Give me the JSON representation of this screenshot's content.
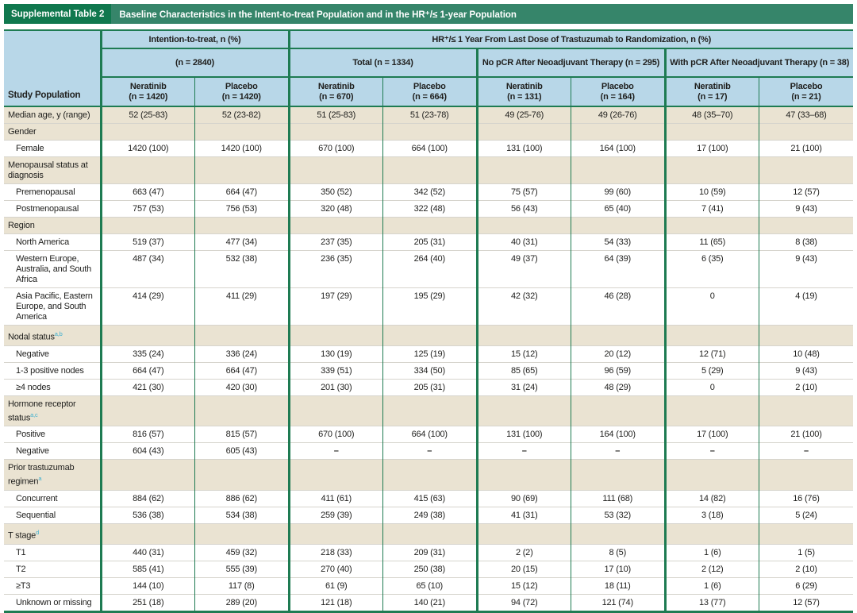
{
  "title_bar": {
    "label": "Supplemental Table 2",
    "title": "Baseline Characteristics in the Intent-to-treat Population and in the HR⁺/≤ 1-year Population"
  },
  "header": {
    "study_population": "Study Population",
    "group_itt": "Intention-to-treat, n (%)",
    "group_hr": "HR⁺/≤ 1 Year From Last Dose of Trastuzumab to Randomization, n (%)",
    "sub_itt": "(n = 2840)",
    "sub_total": "Total (n = 1334)",
    "sub_nopcr": "No pCR After Neoadjuvant Therapy (n = 295)",
    "sub_pcr": "With pCR After Neoadjuvant Therapy (n = 38)",
    "columns": [
      {
        "drug": "Neratinib",
        "n": "(n = 1420)"
      },
      {
        "drug": "Placebo",
        "n": "(n = 1420)"
      },
      {
        "drug": "Neratinib",
        "n": "(n = 670)"
      },
      {
        "drug": "Placebo",
        "n": "(n = 664)"
      },
      {
        "drug": "Neratinib",
        "n": "(n = 131)"
      },
      {
        "drug": "Placebo",
        "n": "(n = 164)"
      },
      {
        "drug": "Neratinib",
        "n": "(n = 17)"
      },
      {
        "drug": "Placebo",
        "n": "(n = 21)"
      }
    ]
  },
  "rows": [
    {
      "label": "Median age, y (range)",
      "sup": "",
      "indent": false,
      "values": [
        "52 (25-83)",
        "52 (23-82)",
        "51 (25-83)",
        "51 (23-78)",
        "49 (25-76)",
        "49 (26-76)",
        "48 (35–70)",
        "47 (33–68)"
      ]
    },
    {
      "label": "Gender",
      "sup": "",
      "indent": false,
      "values": []
    },
    {
      "label": "Female",
      "sup": "",
      "indent": true,
      "values": [
        "1420 (100)",
        "1420 (100)",
        "670 (100)",
        "664 (100)",
        "131 (100)",
        "164 (100)",
        "17 (100)",
        "21 (100)"
      ]
    },
    {
      "label": "Menopausal status at diagnosis",
      "sup": "",
      "indent": false,
      "values": []
    },
    {
      "label": "Premenopausal",
      "sup": "",
      "indent": true,
      "values": [
        "663 (47)",
        "664 (47)",
        "350 (52)",
        "342 (52)",
        "75 (57)",
        "99 (60)",
        "10 (59)",
        "12 (57)"
      ]
    },
    {
      "label": "Postmenopausal",
      "sup": "",
      "indent": true,
      "values": [
        "757 (53)",
        "756 (53)",
        "320 (48)",
        "322 (48)",
        "56 (43)",
        "65 (40)",
        "7 (41)",
        "9 (43)"
      ]
    },
    {
      "label": "Region",
      "sup": "",
      "indent": false,
      "values": []
    },
    {
      "label": "North America",
      "sup": "",
      "indent": true,
      "values": [
        "519 (37)",
        "477 (34)",
        "237 (35)",
        "205 (31)",
        "40 (31)",
        "54 (33)",
        "11 (65)",
        "8 (38)"
      ]
    },
    {
      "label": "Western Europe, Australia, and South Africa",
      "sup": "",
      "indent": true,
      "values": [
        "487 (34)",
        "532 (38)",
        "236 (35)",
        "264 (40)",
        "49 (37)",
        "64 (39)",
        "6 (35)",
        "9 (43)"
      ]
    },
    {
      "label": "Asia Pacific, Eastern Europe, and South America",
      "sup": "",
      "indent": true,
      "values": [
        "414 (29)",
        "411 (29)",
        "197 (29)",
        "195 (29)",
        "42 (32)",
        "46 (28)",
        "0",
        "4 (19)"
      ]
    },
    {
      "label": "Nodal status",
      "sup": "a,b",
      "indent": false,
      "values": []
    },
    {
      "label": "Negative",
      "sup": "",
      "indent": true,
      "values": [
        "335 (24)",
        "336 (24)",
        "130 (19)",
        "125 (19)",
        "15 (12)",
        "20 (12)",
        "12 (71)",
        "10 (48)"
      ]
    },
    {
      "label": "1-3 positive nodes",
      "sup": "",
      "indent": true,
      "values": [
        "664 (47)",
        "664 (47)",
        "339 (51)",
        "334 (50)",
        "85 (65)",
        "96 (59)",
        "5 (29)",
        "9 (43)"
      ]
    },
    {
      "label": "≥4 nodes",
      "sup": "",
      "indent": true,
      "values": [
        "421 (30)",
        "420 (30)",
        "201 (30)",
        "205 (31)",
        "31 (24)",
        "48 (29)",
        "0",
        "2 (10)"
      ]
    },
    {
      "label": "Hormone receptor status",
      "sup": "a,c",
      "indent": false,
      "values": []
    },
    {
      "label": "Positive",
      "sup": "",
      "indent": true,
      "values": [
        "816 (57)",
        "815 (57)",
        "670 (100)",
        "664 (100)",
        "131 (100)",
        "164 (100)",
        "17 (100)",
        "21 (100)"
      ]
    },
    {
      "label": "Negative",
      "sup": "",
      "indent": true,
      "values": [
        "604 (43)",
        "605 (43)",
        "–",
        "–",
        "–",
        "–",
        "–",
        "–"
      ]
    },
    {
      "label": "Prior trastuzumab regimen",
      "sup": "a",
      "indent": false,
      "values": []
    },
    {
      "label": "Concurrent",
      "sup": "",
      "indent": true,
      "values": [
        "884 (62)",
        "886 (62)",
        "411 (61)",
        "415 (63)",
        "90 (69)",
        "111 (68)",
        "14 (82)",
        "16 (76)"
      ]
    },
    {
      "label": "Sequential",
      "sup": "",
      "indent": true,
      "values": [
        "536 (38)",
        "534 (38)",
        "259 (39)",
        "249 (38)",
        "41 (31)",
        "53 (32)",
        "3 (18)",
        "5 (24)"
      ]
    },
    {
      "label": "T stage",
      "sup": "d",
      "indent": false,
      "values": []
    },
    {
      "label": "T1",
      "sup": "",
      "indent": true,
      "values": [
        "440 (31)",
        "459 (32)",
        "218 (33)",
        "209 (31)",
        "2 (2)",
        "8 (5)",
        "1 (6)",
        "1 (5)"
      ]
    },
    {
      "label": "T2",
      "sup": "",
      "indent": true,
      "values": [
        "585 (41)",
        "555 (39)",
        "270 (40)",
        "250 (38)",
        "20 (15)",
        "17 (10)",
        "2 (12)",
        "2 (10)"
      ]
    },
    {
      "label": "≥T3",
      "sup": "",
      "indent": true,
      "values": [
        "144 (10)",
        "117 (8)",
        "61 (9)",
        "65 (10)",
        "15 (12)",
        "18 (11)",
        "1 (6)",
        "6 (29)"
      ]
    },
    {
      "label": "Unknown or missing",
      "sup": "",
      "indent": true,
      "values": [
        "251 (18)",
        "289 (20)",
        "121 (18)",
        "140 (21)",
        "94 (72)",
        "121 (74)",
        "13 (77)",
        "12 (57)"
      ]
    }
  ],
  "colors": {
    "title_label_green": "#10784e",
    "title_bar_green": "#36856a",
    "header_blue": "#b8d7e8",
    "shaded_row_beige": "#eae3d2",
    "grid_line_green": "#1e7b52",
    "footnote_marker_teal": "#3fb0d0"
  }
}
